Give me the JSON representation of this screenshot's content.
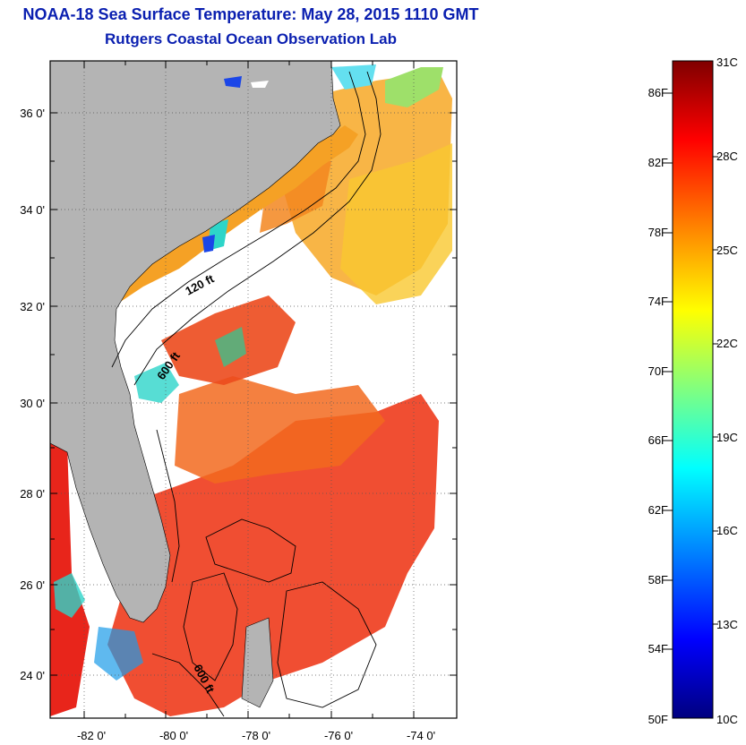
{
  "title": "NOAA-18 Sea Surface Temperature:  May 28, 2015 1110 GMT",
  "subtitle": "Rutgers Coastal Ocean Observation Lab",
  "map": {
    "lat_labels": [
      "36 0'",
      "34 0'",
      "32 0'",
      "30 0'",
      "28 0'",
      "26 0'",
      "24 0'"
    ],
    "lon_labels": [
      "-82 0'",
      "-80 0'",
      "-78 0'",
      "-76 0'",
      "-74 0'"
    ],
    "contour_labels": [
      "120 ft",
      "600 ft",
      "600 ft"
    ],
    "colors": {
      "land": "#b4b4b4",
      "warm": "#ee3b1c",
      "mid": "#f7a21c",
      "cool": "#2dd5c9",
      "cold": "#1b46e8"
    }
  },
  "colorbar": {
    "fahrenheit_labels": [
      "86F",
      "82F",
      "78F",
      "74F",
      "70F",
      "66F",
      "62F",
      "58F",
      "54F",
      "50F"
    ],
    "celsius_labels": [
      "31C",
      "28C",
      "25C",
      "22C",
      "19C",
      "16C",
      "13C",
      "10C"
    ],
    "range_c": [
      10,
      31
    ],
    "stops": [
      "#00007f",
      "#0000ff",
      "#0080ff",
      "#00ffff",
      "#80ff80",
      "#ffff00",
      "#ff8000",
      "#ff0000",
      "#7f0000"
    ]
  }
}
